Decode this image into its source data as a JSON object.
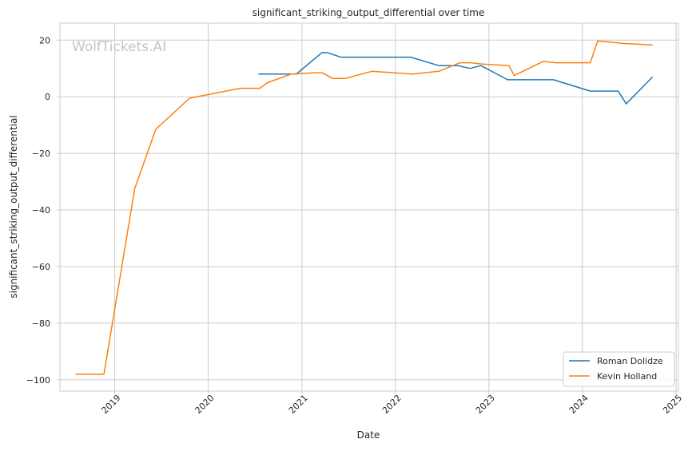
{
  "chart_data": {
    "type": "line",
    "title": "significant_striking_output_differential over time",
    "xlabel": "Date",
    "ylabel": "significant_striking_output_differential",
    "watermark": "WolfTickets.AI",
    "x_ticks": [
      "2019",
      "2020",
      "2021",
      "2022",
      "2023",
      "2024",
      "2025"
    ],
    "y_ticks": [
      20,
      0,
      -20,
      -40,
      -60,
      -80,
      -100
    ],
    "y_tick_labels": [
      "20",
      "0",
      "−20",
      "−40",
      "−60",
      "−80",
      "−100"
    ],
    "xlim": [
      "2018-06-01",
      "2025-01-10"
    ],
    "ylim": [
      -104,
      26
    ],
    "grid": true,
    "legend_position": "lower-right",
    "series": [
      {
        "name": "Roman Dolidze",
        "color": "#1f77b4",
        "points": [
          [
            "2020-07-15",
            8
          ],
          [
            "2020-12-10",
            8
          ],
          [
            "2021-03-20",
            15.6
          ],
          [
            "2021-04-10",
            15.6
          ],
          [
            "2021-06-01",
            14
          ],
          [
            "2022-03-01",
            14
          ],
          [
            "2022-06-20",
            11
          ],
          [
            "2022-09-01",
            11
          ],
          [
            "2022-10-20",
            10
          ],
          [
            "2022-12-01",
            11
          ],
          [
            "2023-03-15",
            6
          ],
          [
            "2023-09-10",
            6
          ],
          [
            "2024-02-01",
            2
          ],
          [
            "2024-05-20",
            2
          ],
          [
            "2024-06-20",
            -2.5
          ],
          [
            "2024-10-01",
            7
          ]
        ]
      },
      {
        "name": "Kevin Holland",
        "color": "#ff7f0e",
        "points": [
          [
            "2018-08-01",
            -98
          ],
          [
            "2018-11-20",
            -98
          ],
          [
            "2019-03-20",
            -32.5
          ],
          [
            "2019-06-10",
            -11.5
          ],
          [
            "2019-10-20",
            -0.5
          ],
          [
            "2020-05-05",
            3
          ],
          [
            "2020-07-20",
            3
          ],
          [
            "2020-08-20",
            5
          ],
          [
            "2020-11-20",
            8
          ],
          [
            "2021-03-01",
            8.5
          ],
          [
            "2021-03-20",
            8.5
          ],
          [
            "2021-05-01",
            6.5
          ],
          [
            "2021-06-20",
            6.5
          ],
          [
            "2021-10-01",
            9
          ],
          [
            "2022-03-10",
            8
          ],
          [
            "2022-06-20",
            9
          ],
          [
            "2022-09-10",
            12
          ],
          [
            "2022-10-20",
            12
          ],
          [
            "2022-12-10",
            11.5
          ],
          [
            "2023-03-20",
            11
          ],
          [
            "2023-04-10",
            7.5
          ],
          [
            "2023-08-01",
            12.5
          ],
          [
            "2023-09-20",
            12
          ],
          [
            "2024-02-01",
            12
          ],
          [
            "2024-03-01",
            19.7
          ],
          [
            "2024-06-10",
            18.8
          ],
          [
            "2024-10-01",
            18.3
          ]
        ]
      }
    ]
  }
}
